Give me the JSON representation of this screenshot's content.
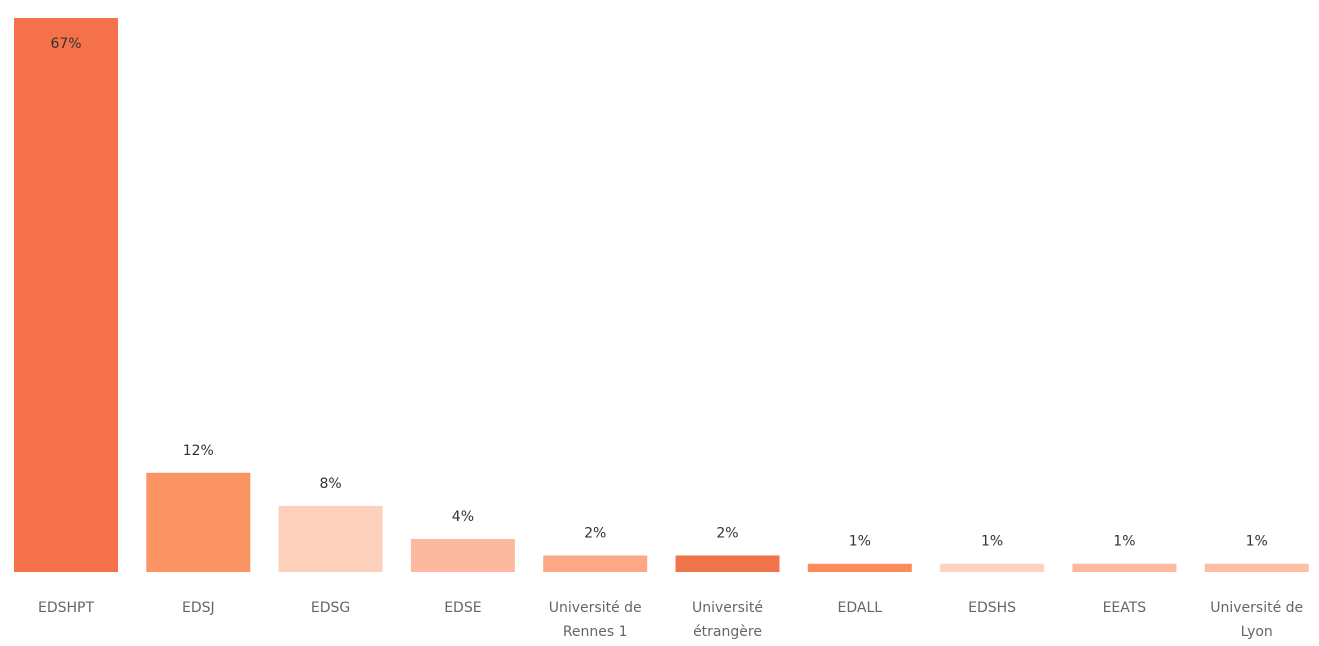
{
  "chart_data": {
    "type": "bar",
    "categories": [
      "EDSHPT",
      "EDSJ",
      "EDSG",
      "EDSE",
      "Université de Rennes 1",
      "Université étrangère",
      "EDALL",
      "EDSHS",
      "EEATS",
      "Université de Lyon"
    ],
    "values": [
      67,
      12,
      8,
      4,
      2,
      2,
      1,
      1,
      1,
      1
    ],
    "value_labels": [
      "67%",
      "12%",
      "8%",
      "4%",
      "2%",
      "2%",
      "1%",
      "1%",
      "1%",
      "1%"
    ],
    "colors": [
      "#f4714a",
      "#fb9463",
      "#fdd0bc",
      "#fcb9a0",
      "#fca786",
      "#f0744a",
      "#fb8b5c",
      "#fdd2c0",
      "#fcb9a0",
      "#fcbfa6"
    ]
  }
}
